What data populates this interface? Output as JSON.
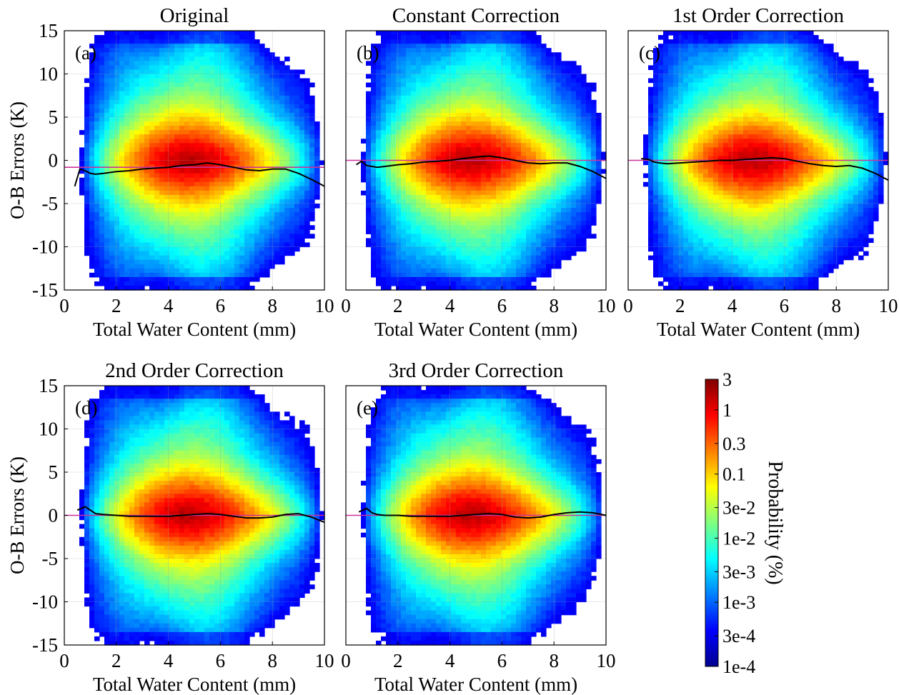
{
  "chart_data": {
    "type": "heatmap",
    "colorbar": {
      "label": "Probability (%)",
      "ticks": [
        "3",
        "1",
        "0.3",
        "0.1",
        "3e-2",
        "1e-2",
        "3e-3",
        "1e-3",
        "3e-4",
        "1e-4"
      ],
      "tick_values": [
        3,
        1,
        0.3,
        0.1,
        0.03,
        0.01,
        0.003,
        0.001,
        0.0003,
        0.0001
      ],
      "scale": "log",
      "colormap": "jet",
      "range": [
        0.0001,
        3
      ]
    },
    "x_axis_shared": {
      "label": "Total Water Content (mm)",
      "range": [
        0,
        10
      ],
      "ticks": [
        0,
        2,
        4,
        6,
        8,
        10
      ]
    },
    "y_axis_shared": {
      "label": "O-B Errors (K)",
      "range": [
        -15,
        15
      ],
      "ticks": [
        15,
        10,
        5,
        0,
        -5,
        -10,
        -15
      ]
    },
    "grid": true,
    "colors": {
      "mean_line": "#000000",
      "reference_line": "#cc3399"
    },
    "panels": [
      {
        "title": "Original",
        "label": "(a)",
        "reference_y": -0.8,
        "mean_curve": {
          "x": [
            0.4,
            0.6,
            0.8,
            1.0,
            1.2,
            1.5,
            2.0,
            2.5,
            3.0,
            3.5,
            4.0,
            4.5,
            5.0,
            5.5,
            6.0,
            6.5,
            7.0,
            7.5,
            8.0,
            8.5,
            9.0,
            9.5,
            10.0
          ],
          "y": [
            -3.0,
            -1.0,
            -1.2,
            -1.5,
            -1.6,
            -1.5,
            -1.3,
            -1.2,
            -1.0,
            -0.9,
            -0.8,
            -0.6,
            -0.5,
            -0.3,
            -0.5,
            -0.8,
            -1.1,
            -1.2,
            -1.0,
            -1.0,
            -1.5,
            -2.2,
            -3.0
          ]
        }
      },
      {
        "title": "Constant Correction",
        "label": "(b)",
        "reference_y": 0.0,
        "mean_curve": {
          "x": [
            0.4,
            0.6,
            0.8,
            1.0,
            1.2,
            1.5,
            2.0,
            2.5,
            3.0,
            3.5,
            4.0,
            4.5,
            5.0,
            5.5,
            6.0,
            6.5,
            7.0,
            7.5,
            8.0,
            8.5,
            9.0,
            9.5,
            10.0
          ],
          "y": [
            -0.5,
            -0.1,
            -0.6,
            -0.7,
            -0.8,
            -0.7,
            -0.5,
            -0.4,
            -0.2,
            -0.1,
            0.0,
            0.2,
            0.4,
            0.5,
            0.3,
            0.0,
            -0.3,
            -0.4,
            -0.3,
            -0.3,
            -0.7,
            -1.3,
            -2.1
          ]
        }
      },
      {
        "title": "1st Order Correction",
        "label": "(c)",
        "reference_y": 0.0,
        "mean_curve": {
          "x": [
            0.5,
            0.8,
            1.0,
            1.2,
            1.5,
            2.0,
            2.5,
            3.0,
            3.5,
            4.0,
            4.5,
            5.0,
            5.5,
            6.0,
            6.5,
            7.0,
            7.5,
            8.0,
            8.5,
            9.0,
            9.5,
            10.0
          ],
          "y": [
            0.2,
            0.1,
            -0.2,
            -0.3,
            -0.4,
            -0.3,
            -0.2,
            -0.1,
            0.0,
            0.0,
            0.1,
            0.2,
            0.3,
            0.2,
            -0.1,
            -0.4,
            -0.6,
            -0.7,
            -0.6,
            -0.9,
            -1.5,
            -2.3
          ]
        }
      },
      {
        "title": "2nd Order Correction",
        "label": "(d)",
        "reference_y": 0.0,
        "mean_curve": {
          "x": [
            0.5,
            0.8,
            1.0,
            1.2,
            1.5,
            2.0,
            2.5,
            3.0,
            3.5,
            4.0,
            4.5,
            5.0,
            5.5,
            6.0,
            6.5,
            7.0,
            7.5,
            8.0,
            8.5,
            9.0,
            9.5,
            10.0
          ],
          "y": [
            0.6,
            1.0,
            0.6,
            0.2,
            0.1,
            0.0,
            -0.1,
            -0.1,
            -0.1,
            -0.1,
            0.0,
            0.1,
            0.2,
            0.1,
            -0.1,
            -0.3,
            -0.3,
            -0.2,
            0.1,
            0.2,
            -0.2,
            -0.8
          ]
        }
      },
      {
        "title": "3rd Order Correction",
        "label": "(e)",
        "reference_y": 0.0,
        "mean_curve": {
          "x": [
            0.5,
            0.8,
            1.0,
            1.2,
            1.5,
            2.0,
            2.5,
            3.0,
            3.5,
            4.0,
            4.5,
            5.0,
            5.5,
            6.0,
            6.5,
            7.0,
            7.5,
            8.0,
            8.5,
            9.0,
            9.5,
            10.0
          ],
          "y": [
            0.4,
            0.8,
            0.3,
            0.1,
            0.0,
            0.0,
            -0.1,
            -0.1,
            -0.1,
            -0.1,
            0.0,
            0.1,
            0.2,
            0.1,
            -0.2,
            -0.3,
            -0.2,
            0.1,
            0.3,
            0.4,
            0.3,
            0.0
          ]
        }
      }
    ]
  }
}
